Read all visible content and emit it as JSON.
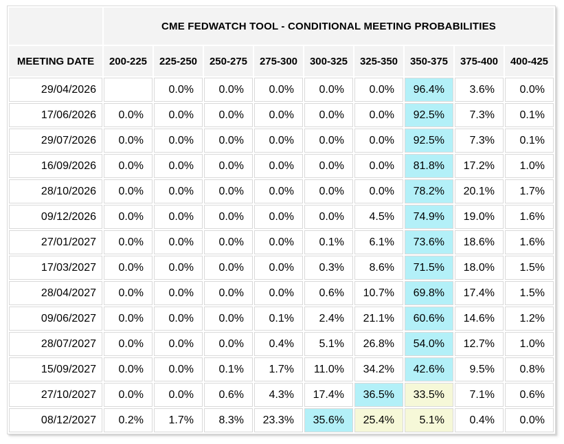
{
  "table": {
    "title": "CME FEDWATCH TOOL - CONDITIONAL MEETING PROBABILITIES",
    "columns": [
      "MEETING DATE",
      "200-225",
      "225-250",
      "250-275",
      "275-300",
      "300-325",
      "325-350",
      "350-375",
      "375-400",
      "400-425"
    ],
    "rows": [
      {
        "date": "29/04/2026",
        "values": [
          "",
          "0.0%",
          "0.0%",
          "0.0%",
          "0.0%",
          "0.0%",
          "96.4%",
          "3.6%",
          "0.0%"
        ],
        "cyan": [
          6
        ],
        "yellow": []
      },
      {
        "date": "17/06/2026",
        "values": [
          "0.0%",
          "0.0%",
          "0.0%",
          "0.0%",
          "0.0%",
          "0.0%",
          "92.5%",
          "7.3%",
          "0.1%"
        ],
        "cyan": [
          6
        ],
        "yellow": []
      },
      {
        "date": "29/07/2026",
        "values": [
          "0.0%",
          "0.0%",
          "0.0%",
          "0.0%",
          "0.0%",
          "0.0%",
          "92.5%",
          "7.3%",
          "0.1%"
        ],
        "cyan": [
          6
        ],
        "yellow": []
      },
      {
        "date": "16/09/2026",
        "values": [
          "0.0%",
          "0.0%",
          "0.0%",
          "0.0%",
          "0.0%",
          "0.0%",
          "81.8%",
          "17.2%",
          "1.0%"
        ],
        "cyan": [
          6
        ],
        "yellow": []
      },
      {
        "date": "28/10/2026",
        "values": [
          "0.0%",
          "0.0%",
          "0.0%",
          "0.0%",
          "0.0%",
          "0.0%",
          "78.2%",
          "20.1%",
          "1.7%"
        ],
        "cyan": [
          6
        ],
        "yellow": []
      },
      {
        "date": "09/12/2026",
        "values": [
          "0.0%",
          "0.0%",
          "0.0%",
          "0.0%",
          "0.0%",
          "4.5%",
          "74.9%",
          "19.0%",
          "1.6%"
        ],
        "cyan": [
          6
        ],
        "yellow": []
      },
      {
        "date": "27/01/2027",
        "values": [
          "0.0%",
          "0.0%",
          "0.0%",
          "0.0%",
          "0.1%",
          "6.1%",
          "73.6%",
          "18.6%",
          "1.6%"
        ],
        "cyan": [
          6
        ],
        "yellow": []
      },
      {
        "date": "17/03/2027",
        "values": [
          "0.0%",
          "0.0%",
          "0.0%",
          "0.0%",
          "0.3%",
          "8.6%",
          "71.5%",
          "18.0%",
          "1.5%"
        ],
        "cyan": [
          6
        ],
        "yellow": []
      },
      {
        "date": "28/04/2027",
        "values": [
          "0.0%",
          "0.0%",
          "0.0%",
          "0.0%",
          "0.6%",
          "10.7%",
          "69.8%",
          "17.4%",
          "1.5%"
        ],
        "cyan": [
          6
        ],
        "yellow": []
      },
      {
        "date": "09/06/2027",
        "values": [
          "0.0%",
          "0.0%",
          "0.0%",
          "0.1%",
          "2.4%",
          "21.1%",
          "60.6%",
          "14.6%",
          "1.2%"
        ],
        "cyan": [
          6
        ],
        "yellow": []
      },
      {
        "date": "28/07/2027",
        "values": [
          "0.0%",
          "0.0%",
          "0.0%",
          "0.4%",
          "5.1%",
          "26.8%",
          "54.0%",
          "12.7%",
          "1.0%"
        ],
        "cyan": [
          6
        ],
        "yellow": []
      },
      {
        "date": "15/09/2027",
        "values": [
          "0.0%",
          "0.0%",
          "0.1%",
          "1.7%",
          "11.0%",
          "34.2%",
          "42.6%",
          "9.5%",
          "0.8%"
        ],
        "cyan": [
          6
        ],
        "yellow": []
      },
      {
        "date": "27/10/2027",
        "values": [
          "0.0%",
          "0.0%",
          "0.6%",
          "4.3%",
          "17.4%",
          "36.5%",
          "33.5%",
          "7.1%",
          "0.6%"
        ],
        "cyan": [
          5
        ],
        "yellow": [
          6
        ]
      },
      {
        "date": "08/12/2027",
        "values": [
          "0.2%",
          "1.7%",
          "8.3%",
          "23.3%",
          "35.6%",
          "25.4%",
          "5.1%",
          "0.4%",
          "0.0%"
        ],
        "cyan": [
          4
        ],
        "yellow": [
          5,
          6
        ]
      }
    ]
  },
  "colors": {
    "cyan_highlight": "#B3F0F8",
    "yellow_highlight": "#F6F8D8",
    "header_bg": "#F3F3F3",
    "grid_line": "#D9D9D9",
    "text": "#000000",
    "table_bg": "#FFFFFF"
  }
}
